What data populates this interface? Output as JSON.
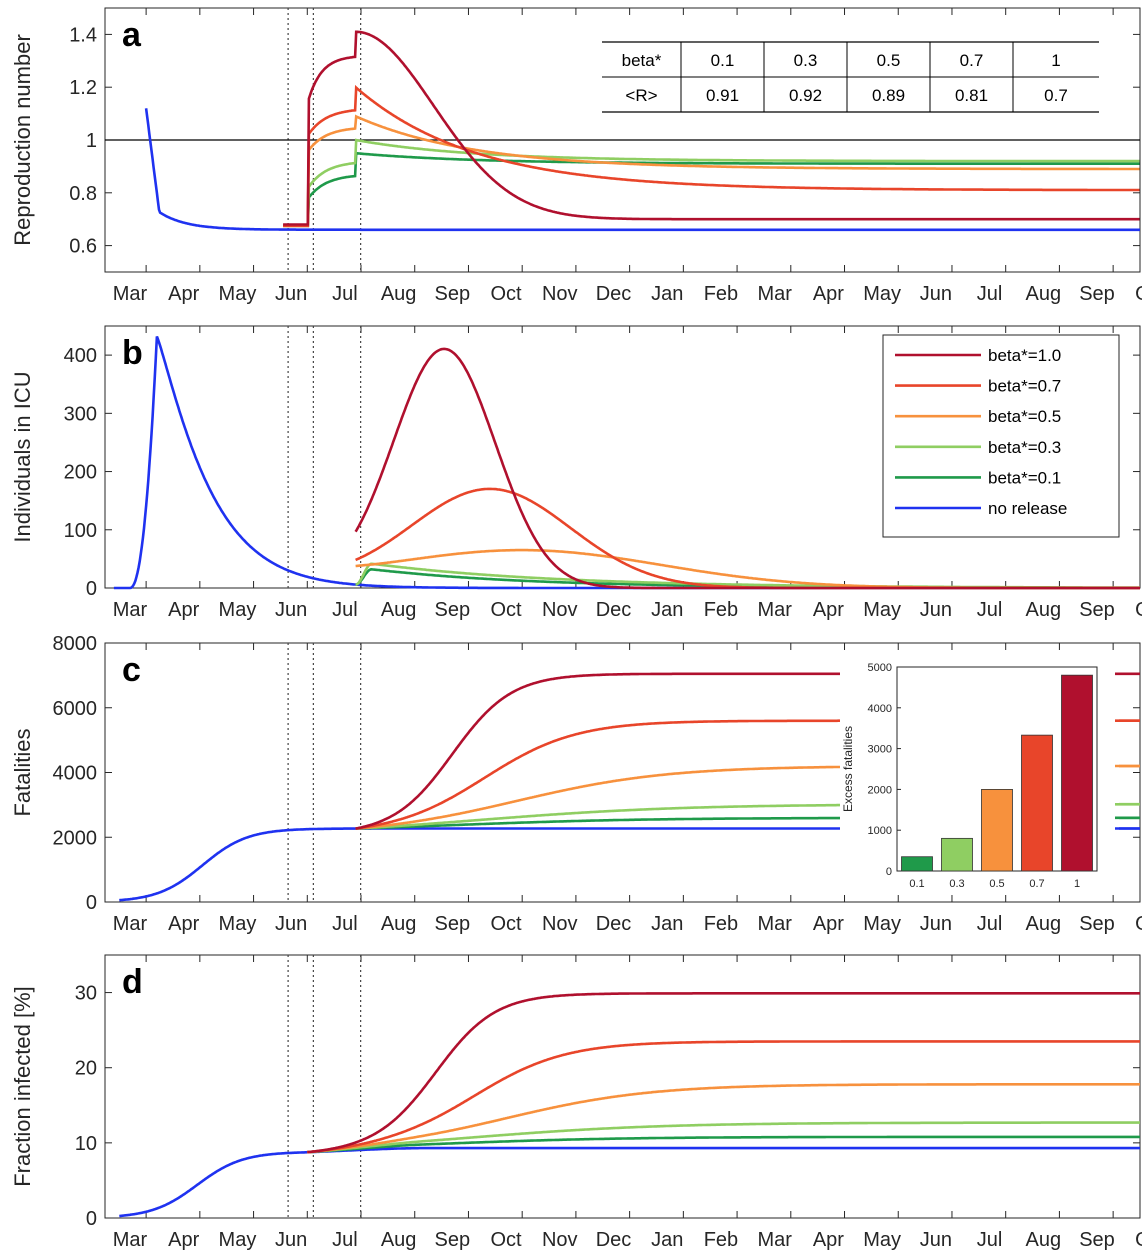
{
  "months": [
    "Mar",
    "Apr",
    "May",
    "Jun",
    "Jul",
    "Aug",
    "Sep",
    "Oct",
    "Nov",
    "Dec",
    "Jan",
    "Feb",
    "Mar",
    "Apr",
    "May",
    "Jun",
    "Jul",
    "Aug",
    "Sep",
    "Oct"
  ],
  "colors": {
    "beta_1.0": "#b0102e",
    "beta_0.7": "#e8452a",
    "beta_0.5": "#f7913d",
    "beta_0.3": "#8fce62",
    "beta_0.1": "#1f9a4a",
    "no_release": "#1f32f0"
  },
  "chart_data": [
    {
      "panel": "a",
      "type": "line",
      "ylabel": "Reproduction number",
      "ylim": [
        0.5,
        1.5
      ],
      "yticks": [
        "0.6",
        "0.8",
        "1",
        "1.2",
        "1.4"
      ],
      "reference_line": 1,
      "table": {
        "headers": [
          "beta*",
          "0.1",
          "0.3",
          "0.5",
          "0.7",
          "1"
        ],
        "row": [
          "<R>",
          "0.91",
          "0.92",
          "0.89",
          "0.81",
          "0.7"
        ]
      },
      "series": [
        {
          "key": "beta_1.0",
          "values_at": "start 0.67, jump 1.30 early May, peak 1.41 Jun, 0.70 from Nov"
        },
        {
          "key": "beta_0.7"
        },
        {
          "key": "beta_0.5"
        },
        {
          "key": "beta_0.3"
        },
        {
          "key": "beta_0.1"
        },
        {
          "key": "no_release"
        }
      ]
    },
    {
      "panel": "b",
      "type": "line",
      "ylabel": "Individuals in ICU",
      "ylim": [
        0,
        450
      ],
      "yticks": [
        "0",
        "100",
        "200",
        "300",
        "400"
      ],
      "legend": [
        "beta*=1.0",
        "beta*=0.7",
        "beta*=0.5",
        "beta*=0.3",
        "beta*=0.1",
        "no release"
      ]
    },
    {
      "panel": "c",
      "type": "line",
      "ylabel": "Fatalities",
      "ylim": [
        0,
        8000
      ],
      "yticks": [
        "0",
        "2000",
        "4000",
        "6000",
        "8000"
      ],
      "final_values": {
        "beta_1.0": 7050,
        "beta_0.7": 5600,
        "beta_0.5": 4200,
        "beta_0.3": 3020,
        "beta_0.1": 2600,
        "no_release": 2270
      },
      "inset": {
        "type": "bar",
        "ylabel": "Excess fatalities",
        "categories": [
          "0.1",
          "0.3",
          "0.5",
          "0.7",
          "1"
        ],
        "values": [
          350,
          800,
          2000,
          3330,
          4800
        ],
        "ylim": [
          0,
          5000
        ],
        "yticks": [
          "0",
          "1000",
          "2000",
          "3000",
          "4000",
          "5000"
        ]
      }
    },
    {
      "panel": "d",
      "type": "line",
      "ylabel": "Fraction infected [%]",
      "ylim": [
        0,
        35
      ],
      "yticks": [
        "0",
        "10",
        "20",
        "30"
      ],
      "final_values": {
        "beta_1.0": 29.9,
        "beta_0.7": 23.5,
        "beta_0.5": 17.8,
        "beta_0.3": 12.7,
        "beta_0.1": 10.8,
        "no_release": 9.3
      }
    }
  ]
}
